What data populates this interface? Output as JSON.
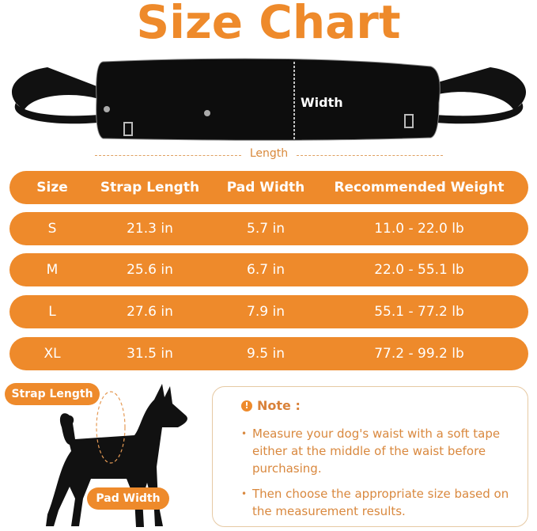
{
  "title": "Size Chart",
  "product": {
    "width_label": "Width",
    "length_label": "Length"
  },
  "table": {
    "headers": [
      "Size",
      "Strap Length",
      "Pad Width",
      "Recommended Weight"
    ],
    "rows": [
      [
        "S",
        "21.3 in",
        "5.7 in",
        "11.0 - 22.0 lb"
      ],
      [
        "M",
        "25.6 in",
        "6.7 in",
        "22.0 - 55.1 lb"
      ],
      [
        "L",
        "27.6 in",
        "7.9 in",
        "55.1 - 77.2 lb"
      ],
      [
        "XL",
        "31.5 in",
        "9.5 in",
        "77.2 - 99.2 lb"
      ]
    ]
  },
  "diagram": {
    "strap_length_label": "Strap Length",
    "pad_width_label": "Pad Width"
  },
  "note": {
    "icon": "exclamation-icon",
    "title": "Note :",
    "items": [
      "Measure your dog's waist with a soft tape either at the middle of the waist before purchasing.",
      "Then choose the appropriate size based on the measurement results."
    ]
  },
  "colors": {
    "accent": "#ee8a2b",
    "note_text": "#d9883e"
  }
}
